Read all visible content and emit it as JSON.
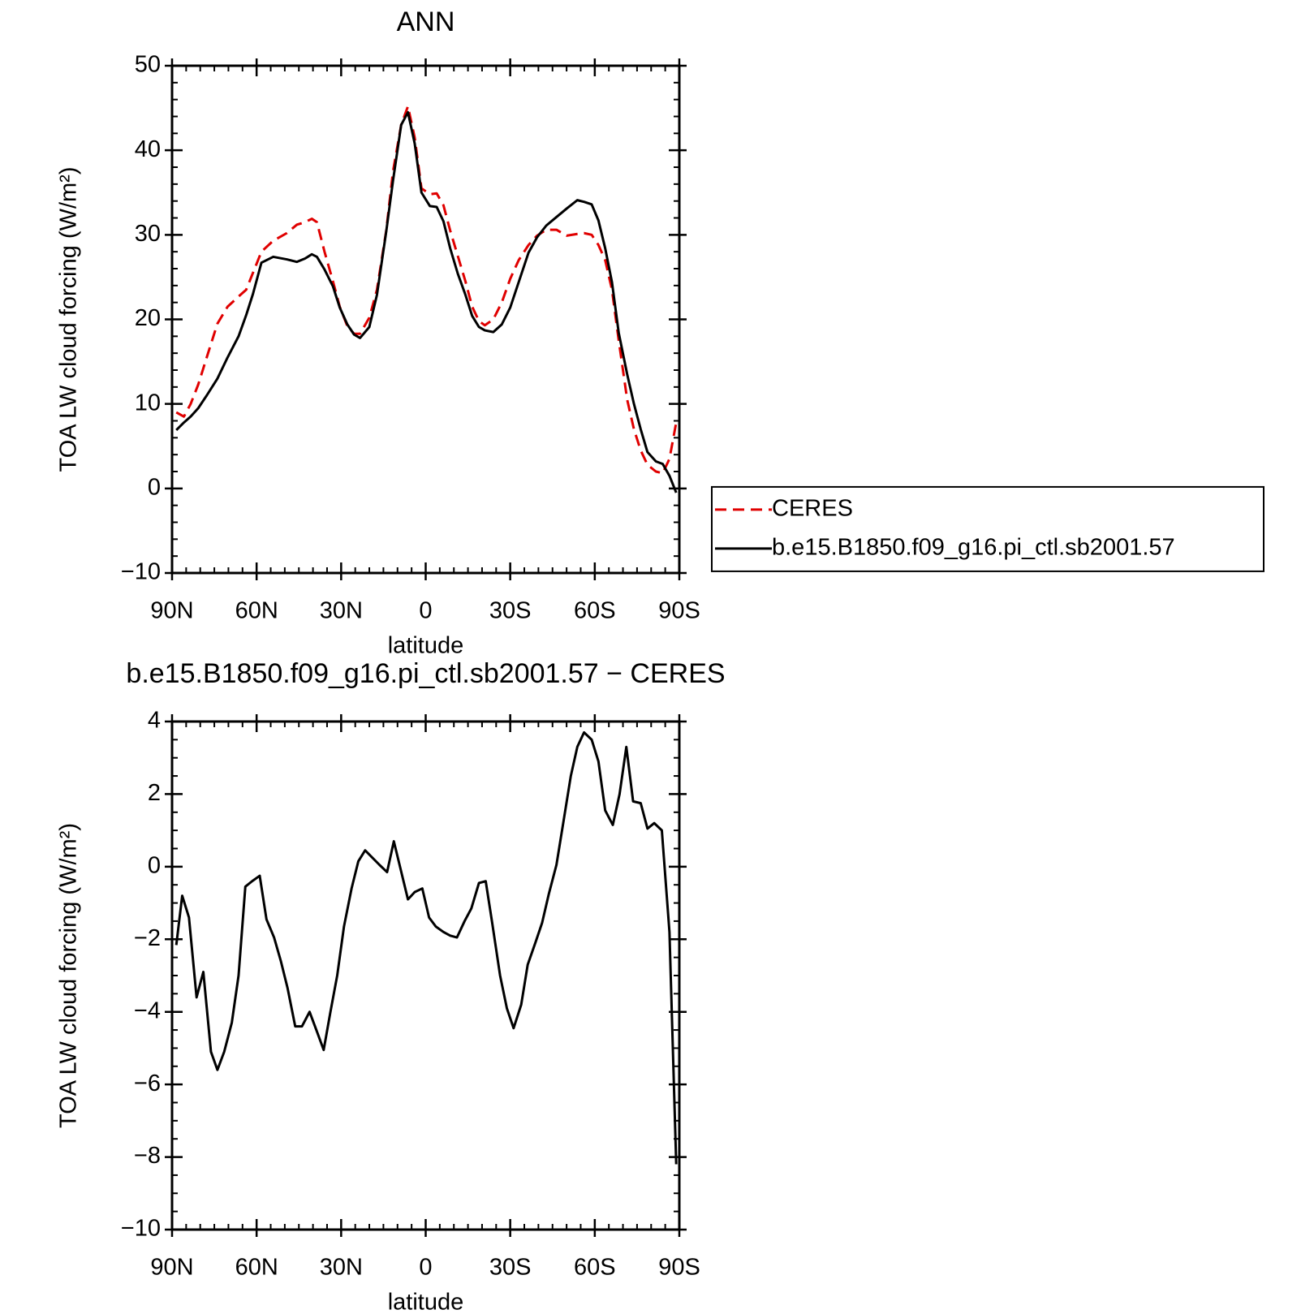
{
  "chart_data": [
    {
      "type": "line",
      "title": "ANN",
      "xlabel": "latitude",
      "ylabel": "TOA LW cloud forcing (W/m²)",
      "x": [
        88.5,
        85.8,
        83.4,
        80.7,
        77.7,
        73.9,
        70.3,
        66.4,
        63.7,
        61.3,
        58.3,
        54.1,
        49.3,
        45.7,
        42.8,
        40.4,
        38.6,
        35.9,
        32.9,
        30.5,
        27.8,
        25.4,
        23.3,
        20.0,
        17.3,
        14.0,
        11.6,
        8.7,
        6.3,
        3.9,
        1.5,
        -1.5,
        -3.9,
        -6.3,
        -8.7,
        -11.4,
        -14.1,
        -16.5,
        -18.9,
        -21.0,
        -24.0,
        -27.0,
        -30.0,
        -33.0,
        -36.5,
        -39.5,
        -42.8,
        -46.4,
        -50.0,
        -53.8,
        -56.2,
        -58.9,
        -61.3,
        -63.7,
        -66.1,
        -68.5,
        -71.5,
        -73.9,
        -76.3,
        -78.7,
        -81.7,
        -84.1,
        -86.5,
        -88.9
      ],
      "series": [
        {
          "name": "CERES",
          "color": "#e00000",
          "dash": true,
          "values": [
            9.0,
            8.5,
            10,
            12.3,
            15.5,
            19.5,
            21.5,
            22.7,
            23.5,
            25.5,
            28,
            29.3,
            30.2,
            31.2,
            31.5,
            31.9,
            31.5,
            28,
            24.5,
            21.5,
            19.2,
            18.3,
            18.3,
            20.2,
            23.5,
            30.5,
            37.5,
            43,
            45.2,
            41.5,
            35.5,
            34.8,
            34.9,
            33.5,
            30.5,
            27.5,
            24.5,
            21.5,
            19.8,
            19.3,
            20,
            22,
            24.8,
            27,
            28.8,
            29.9,
            30.6,
            30.6,
            29.9,
            30.1,
            30.2,
            30,
            28.8,
            27,
            23.5,
            17.5,
            10.5,
            7,
            4.5,
            2.8,
            2,
            1.8,
            3.5,
            7.8
          ]
        },
        {
          "name": "b.e15.B1850.f09_g16.pi_ctl.sb2001.57",
          "color": "#000000",
          "dash": false,
          "values": [
            6.9,
            7.8,
            8.5,
            9.5,
            11,
            13,
            15.5,
            18,
            20.5,
            23,
            26.7,
            27.4,
            27.1,
            26.8,
            27.2,
            27.7,
            27.4,
            25.9,
            23.9,
            21.4,
            19.4,
            18.2,
            17.8,
            19.1,
            22.9,
            30.4,
            36.4,
            43,
            44.5,
            40.8,
            35,
            33.4,
            33.3,
            31.6,
            28.4,
            25.4,
            22.9,
            20.4,
            19.1,
            18.7,
            18.5,
            19.4,
            21.4,
            24.4,
            27.9,
            29.7,
            31.1,
            32.1,
            33.1,
            34.1,
            33.9,
            33.6,
            31.7,
            28.4,
            24.4,
            18.4,
            13.5,
            10,
            7,
            4.3,
            3.2,
            2.9,
            1.5,
            -0.5
          ]
        }
      ],
      "xlim": [
        90,
        -90
      ],
      "xticks": [
        {
          "value": 90,
          "label": "90N"
        },
        {
          "value": 60,
          "label": "60N"
        },
        {
          "value": 30,
          "label": "30N"
        },
        0,
        {
          "value": -30,
          "label": "30S"
        },
        {
          "value": -60,
          "label": "60S"
        },
        {
          "value": -90,
          "label": "90S"
        }
      ],
      "ylim": [
        -10,
        50
      ],
      "yticks": [
        {
          "value": -10,
          "label": "−10"
        },
        0,
        10,
        20,
        30,
        40,
        50
      ],
      "legend": "outside-right"
    },
    {
      "type": "line",
      "title": "b.e15.B1850.f09_g16.pi_ctl.sb2001.57 − CERES",
      "xlabel": "latitude",
      "ylabel": "TOA LW cloud forcing (W/m²)",
      "x": [
        88.5,
        86.4,
        84,
        81.3,
        78.9,
        76.2,
        73.9,
        71.5,
        68.8,
        66.4,
        64.0,
        61.6,
        58.9,
        56.5,
        53.8,
        51.4,
        49.0,
        46.3,
        43.9,
        41.2,
        38.8,
        36.2,
        33.8,
        31.4,
        29.0,
        26.3,
        23.9,
        21.5,
        16.4,
        13.7,
        11.3,
        6.3,
        3.9,
        1.2,
        -1.2,
        -3.6,
        -6.3,
        -8.7,
        -11.1,
        -13.8,
        -16.2,
        -18.9,
        -21.3,
        -23.6,
        -26.4,
        -28.8,
        -31.2,
        -33.9,
        -36.2,
        -38.9,
        -41.3,
        -43.7,
        -46.4,
        -48.8,
        -51.5,
        -53.8,
        -56.2,
        -58.9,
        -61.3,
        -63.7,
        -66.4,
        -68.8,
        -71.2,
        -73.6,
        -76.3,
        -78.7,
        -81.1,
        -83.8,
        -86.5,
        -88.9
      ],
      "series": [
        {
          "name": null,
          "color": "#000000",
          "dash": false,
          "values": [
            -2.16,
            -0.8,
            -1.4,
            -3.6,
            -2.9,
            -5.1,
            -5.6,
            -5.1,
            -4.3,
            -3.0,
            -0.55,
            -0.4,
            -0.25,
            -1.45,
            -1.95,
            -2.6,
            -3.35,
            -4.4,
            -4.4,
            -4.0,
            -4.5,
            -5.05,
            -4.0,
            -3.0,
            -1.65,
            -0.6,
            0.15,
            0.45,
            0.05,
            -0.15,
            0.7,
            -0.9,
            -0.7,
            -0.6,
            -1.4,
            -1.65,
            -1.8,
            -1.9,
            -1.95,
            -1.5,
            -1.15,
            -0.45,
            -0.4,
            -1.55,
            -3.0,
            -3.9,
            -4.45,
            -3.8,
            -2.7,
            -2.1,
            -1.55,
            -0.75,
            0.05,
            1.2,
            2.5,
            3.3,
            3.7,
            3.5,
            2.9,
            1.55,
            1.15,
            2.0,
            3.3,
            1.8,
            1.75,
            1.05,
            1.2,
            1.0,
            -1.8,
            -8.2
          ]
        }
      ],
      "xlim": [
        90,
        -90
      ],
      "xticks": [
        {
          "value": 90,
          "label": "90N"
        },
        {
          "value": 60,
          "label": "60N"
        },
        {
          "value": 30,
          "label": "30N"
        },
        0,
        {
          "value": -30,
          "label": "30S"
        },
        {
          "value": -60,
          "label": "60S"
        },
        {
          "value": -90,
          "label": "90S"
        }
      ],
      "ylim": [
        -10,
        4
      ],
      "yticks": [
        {
          "value": -10,
          "label": "−10"
        },
        {
          "value": -8,
          "label": "−8"
        },
        {
          "value": -6,
          "label": "−6"
        },
        {
          "value": -4,
          "label": "−4"
        },
        {
          "value": -2,
          "label": "−2"
        },
        0,
        2,
        4
      ]
    }
  ]
}
